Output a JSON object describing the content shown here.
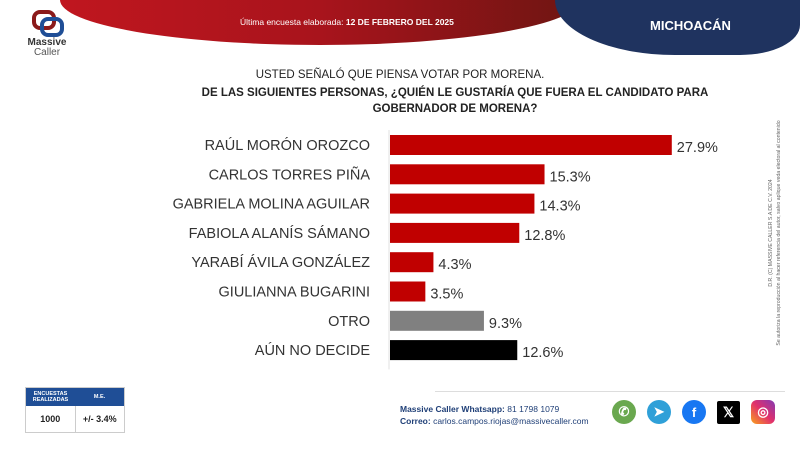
{
  "header": {
    "date_label": "Última encuesta elaborada:",
    "date_value": "12 DE FEBRERO DEL 2025",
    "state": "MICHOACÁN",
    "logo_line1": "Massive",
    "logo_line2": "Caller"
  },
  "question": {
    "line1": "USTED SEÑALÓ QUE PIENSA VOTAR POR MORENA.",
    "line2": "DE LAS SIGUIENTES PERSONAS, ¿QUIÉN LE GUSTARÍA QUE FUERA EL CANDIDATO PARA GOBERNADOR DE MORENA?"
  },
  "chart_data": {
    "type": "bar",
    "orientation": "horizontal",
    "title": "DE LAS SIGUIENTES PERSONAS, ¿QUIÉN LE GUSTARÍA QUE FUERA EL CANDIDATO PARA GOBERNADOR DE MORENA?",
    "categories": [
      "RAÚL MORÓN OROZCO",
      "CARLOS TORRES PIÑA",
      "GABRIELA MOLINA AGUILAR",
      "FABIOLA ALANÍS SÁMANO",
      "YARABÍ ÁVILA GONZÁLEZ",
      "GIULIANNA BUGARINI",
      "OTRO",
      "AÚN NO DECIDE"
    ],
    "values": [
      27.9,
      15.3,
      14.3,
      12.8,
      4.3,
      3.5,
      9.3,
      12.6
    ],
    "labels": [
      "27.9%",
      "15.3%",
      "14.3%",
      "12.8%",
      "4.3%",
      "3.5%",
      "9.3%",
      "12.6%"
    ],
    "colors": [
      "#c00000",
      "#c00000",
      "#c00000",
      "#c00000",
      "#c00000",
      "#c00000",
      "#808080",
      "#000000"
    ],
    "unit": "%",
    "xlim": [
      0,
      30
    ],
    "grid": false,
    "legend": "none"
  },
  "copyright": {
    "line1": "D.R. (C) MASSIVE CALLER S.A DE C.V. 2024",
    "line2": "Se autoriza la reproducción al hacer referencia del autor, salvo aplique veda electoral al contenido"
  },
  "stats": {
    "col1_header": "ENCUESTAS REALIZADAS",
    "col2_header": "M.E.",
    "col1_value": "1000",
    "col2_value": "+/- 3.4%"
  },
  "contact": {
    "whatsapp_label": "Massive Caller Whatsapp:",
    "whatsapp_value": "81 1798 1079",
    "email_label": "Correo:",
    "email_value": "carlos.campos.riojas@massivecaller.com"
  },
  "social": [
    {
      "name": "whatsapp-icon",
      "glyph": "✆"
    },
    {
      "name": "telegram-icon",
      "glyph": "➤"
    },
    {
      "name": "facebook-icon",
      "glyph": "f"
    },
    {
      "name": "x-icon",
      "glyph": "𝕏"
    },
    {
      "name": "instagram-icon",
      "glyph": "◎"
    }
  ]
}
